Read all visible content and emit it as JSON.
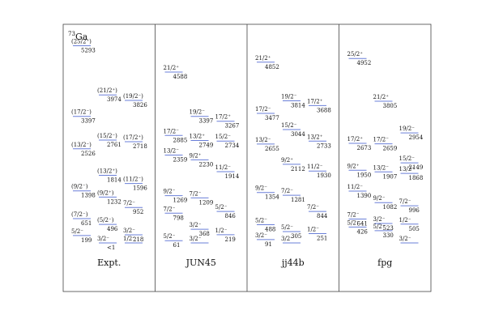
{
  "nucleus": {
    "mass": "73",
    "symbol": "Ga"
  },
  "panels": [
    {
      "label": "Expt.",
      "levels": [
        {
          "spin": "(25/2⁺)",
          "energy": 5293
        },
        {
          "spin": "(21/2⁺)",
          "energy": 3974
        },
        {
          "spin": "(19/2⁻)",
          "energy": 3826
        },
        {
          "spin": "(17/2⁻)",
          "energy": 3397
        },
        {
          "spin": "(15/2⁻)",
          "energy": 2761
        },
        {
          "spin": "(17/2⁺)",
          "energy": 2718
        },
        {
          "spin": "(13/2⁻)",
          "energy": 2526
        },
        {
          "spin": "(13/2⁺)",
          "energy": 1814
        },
        {
          "spin": "(11/2⁻)",
          "energy": 1596
        },
        {
          "spin": "(9/2⁻)",
          "energy": 1398
        },
        {
          "spin": "(9/2⁺)",
          "energy": 1232
        },
        {
          "spin": "7/2⁻",
          "energy": 952
        },
        {
          "spin": "(7/2⁻)",
          "energy": 651
        },
        {
          "spin": "(5/2⁻)",
          "energy": 496
        },
        {
          "spin": "3/2⁻",
          "energy": 218
        },
        {
          "spin": "5/2⁻",
          "energy": 199
        },
        {
          "spin": "3/2⁻",
          "energy": {
            "value": 1,
            "label": "<1"
          }
        },
        {
          "spin": "1/2⁻",
          "energy": null
        }
      ]
    },
    {
      "label": "JUN45",
      "levels": [
        {
          "spin": "21/2⁺",
          "energy": 4588
        },
        {
          "spin": "19/2⁻",
          "energy": 3397
        },
        {
          "spin": "17/2⁺",
          "energy": 3267
        },
        {
          "spin": "17/2⁻",
          "energy": 2885
        },
        {
          "spin": "13/2⁺",
          "energy": 2749
        },
        {
          "spin": "15/2⁻",
          "energy": 2734
        },
        {
          "spin": "13/2⁻",
          "energy": 2359
        },
        {
          "spin": "9/2⁺",
          "energy": 2230
        },
        {
          "spin": "11/2⁻",
          "energy": 1914
        },
        {
          "spin": "9/2⁻",
          "energy": 1269
        },
        {
          "spin": "7/2⁻",
          "energy": 1209
        },
        {
          "spin": "5/2⁻",
          "energy": 846
        },
        {
          "spin": "7/2⁻",
          "energy": 798
        },
        {
          "spin": "3/2⁻",
          "energy": 368
        },
        {
          "spin": "1/2⁻",
          "energy": 219
        },
        {
          "spin": "5/2⁻",
          "energy": 61
        },
        {
          "spin": "3/2⁻",
          "energy": null
        }
      ]
    },
    {
      "label": "jj44b",
      "levels": [
        {
          "spin": "21/2⁺",
          "energy": 4852
        },
        {
          "spin": "19/2⁻",
          "energy": 3814
        },
        {
          "spin": "17/2⁺",
          "energy": 3688
        },
        {
          "spin": "17/2⁻",
          "energy": 3477
        },
        {
          "spin": "15/2⁻",
          "energy": 3044
        },
        {
          "spin": "13/2⁺",
          "energy": 2733
        },
        {
          "spin": "13/2⁻",
          "energy": 2655
        },
        {
          "spin": "9/2⁺",
          "energy": 2112
        },
        {
          "spin": "11/2⁻",
          "energy": 1930
        },
        {
          "spin": "9/2⁻",
          "energy": 1354
        },
        {
          "spin": "7/2⁻",
          "energy": 1281
        },
        {
          "spin": "7/2⁻",
          "energy": 844
        },
        {
          "spin": "5/2⁻",
          "energy": 488
        },
        {
          "spin": "5/2⁻",
          "energy": 305
        },
        {
          "spin": "1/2⁻",
          "energy": 251
        },
        {
          "spin": "3/2⁻",
          "energy": 91
        },
        {
          "spin": "3/2⁻",
          "energy": null
        }
      ]
    },
    {
      "label": "fpg",
      "levels": [
        {
          "spin": "25/2⁺",
          "energy": 4952
        },
        {
          "spin": "21/2⁺",
          "energy": 3805
        },
        {
          "spin": "19/2⁻",
          "energy": 2954
        },
        {
          "spin": "17/2⁺",
          "energy": 2673
        },
        {
          "spin": "17/2⁻",
          "energy": 2659
        },
        {
          "spin": "15/2⁻",
          "energy": 2149
        },
        {
          "spin": "9/2⁺",
          "energy": 1950
        },
        {
          "spin": "13/2⁻",
          "energy": 1907
        },
        {
          "spin": "13/2⁺",
          "energy": 1868
        },
        {
          "spin": "11/2⁻",
          "energy": 1390
        },
        {
          "spin": "9/2⁻",
          "energy": 1082
        },
        {
          "spin": "7/2⁻",
          "energy": 996
        },
        {
          "spin": "7/2⁻",
          "energy": 641
        },
        {
          "spin": "3/2⁻",
          "energy": 523
        },
        {
          "spin": "1/2⁻",
          "energy": 505
        },
        {
          "spin": "5/2⁻",
          "energy": 426
        },
        {
          "spin": "5/2⁻",
          "energy": 330
        },
        {
          "spin": "3/2⁻",
          "energy": null
        }
      ]
    }
  ]
}
